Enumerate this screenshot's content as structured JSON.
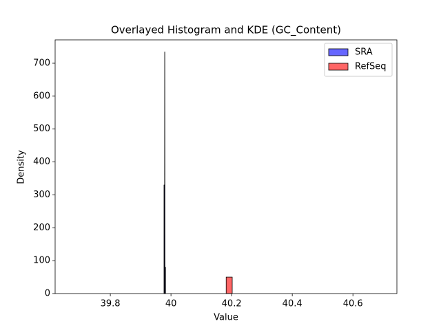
{
  "chart_data": {
    "type": "histogram",
    "title": "Overlayed Histogram and KDE (GC_Content)",
    "x_label": "Value",
    "y_label": "Density",
    "xlim": [
      39.618,
      40.745
    ],
    "ylim": [
      0,
      771
    ],
    "xticks": [
      39.8,
      40.0,
      40.2,
      40.4,
      40.6
    ],
    "yticks": [
      0,
      100,
      200,
      300,
      400,
      500,
      600,
      700
    ],
    "legend": "upper right",
    "series": [
      {
        "name": "SRA",
        "color": "#0000ff",
        "bins": [
          39.977,
          39.9795,
          39.982
        ],
        "values": [
          330,
          80
        ]
      },
      {
        "name": "RefSeq",
        "color": "#ff0000",
        "bins": [
          40.182,
          40.202
        ],
        "values": [
          50
        ]
      }
    ],
    "kde_lines": [
      {
        "color": "#000000",
        "x": [
          39.977,
          39.979,
          39.9795,
          39.98,
          39.982
        ],
        "y": [
          0,
          0,
          735,
          0,
          0
        ]
      }
    ]
  }
}
